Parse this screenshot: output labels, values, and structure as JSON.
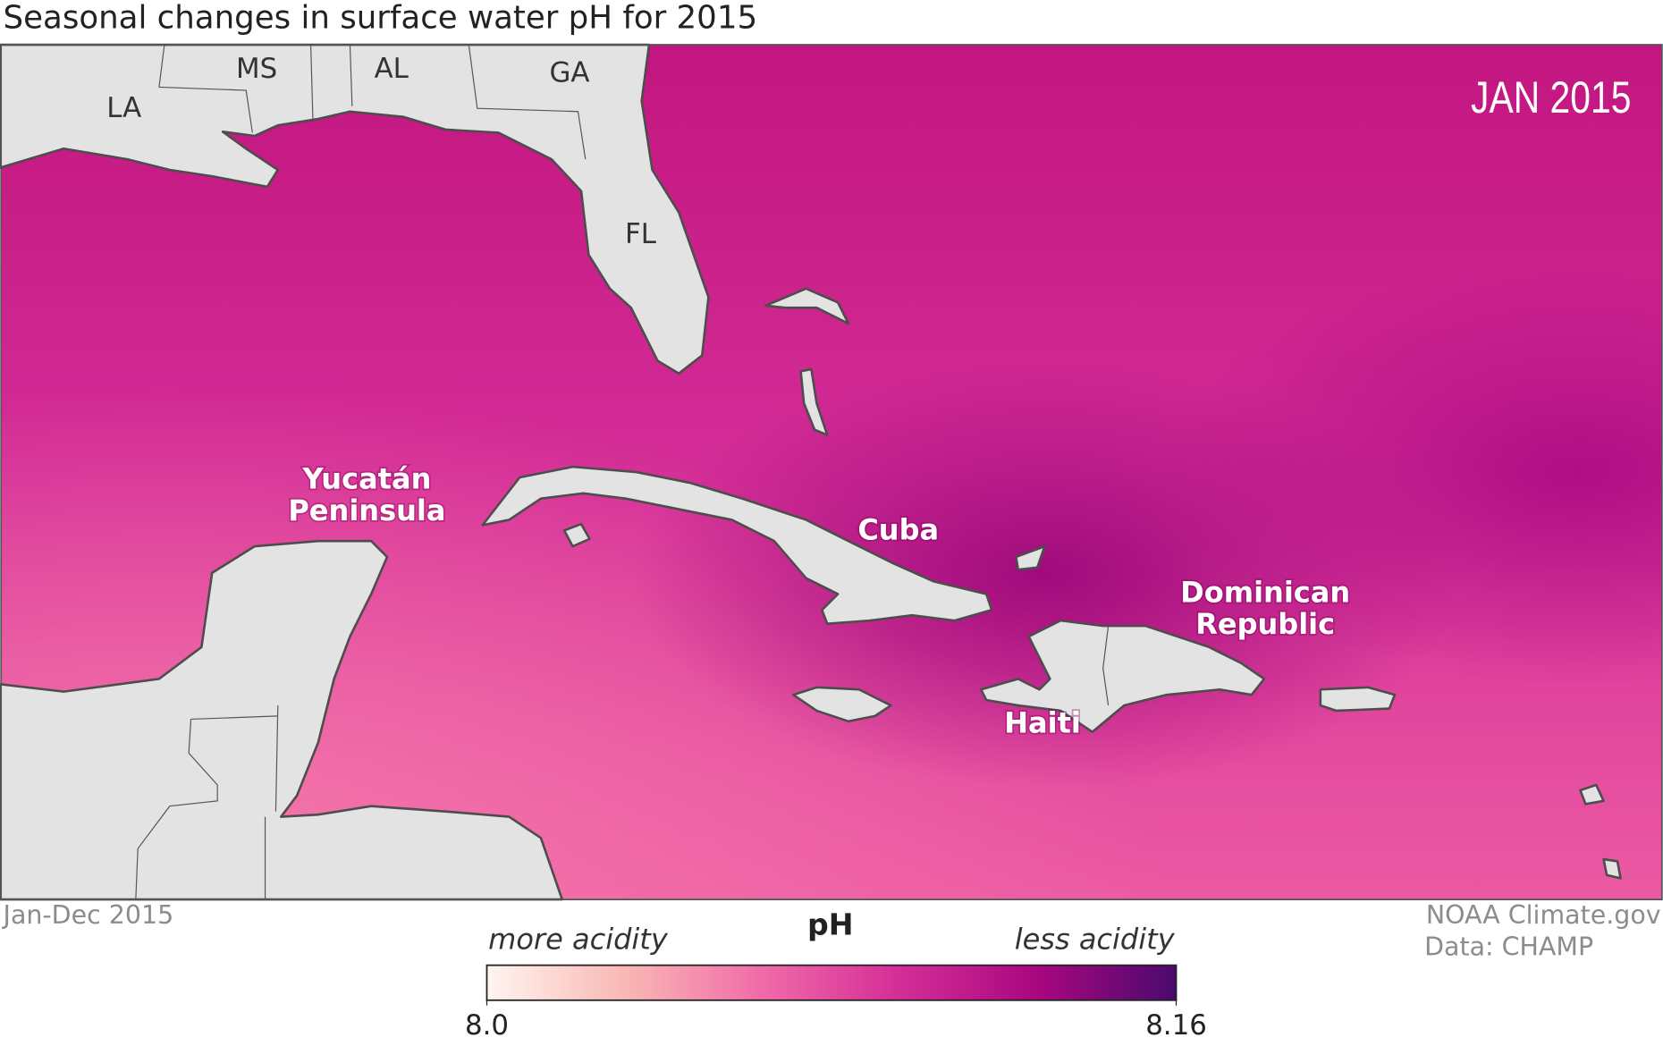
{
  "title": "Seasonal changes in surface water pH for 2015",
  "date_label": "JAN 2015",
  "period": "Jan-Dec 2015",
  "credit": [
    "NOAA Climate.gov",
    "Data: CHAMP"
  ],
  "states": [
    "LA",
    "MS",
    "AL",
    "GA",
    "FL"
  ],
  "places": [
    "Cuba",
    "Haiti"
  ],
  "regions": [
    [
      "Yucatán",
      "Peninsula"
    ],
    [
      "Dominican",
      "Republic"
    ]
  ],
  "legend": {
    "title": "pH",
    "low_text": "more acidity",
    "high_text": "less acidity",
    "range": [
      {
        "value": 8,
        "label": "8.0"
      },
      8.16
    ],
    "ticks": [
      {
        "value": 8,
        "label": "8.0"
      },
      8.16
    ],
    "colors": [
      "#fff5f0",
      "#f9b8b4",
      "#f06aa8",
      "#d42d97",
      "#a8077f",
      "#4a0a6e"
    ]
  }
}
